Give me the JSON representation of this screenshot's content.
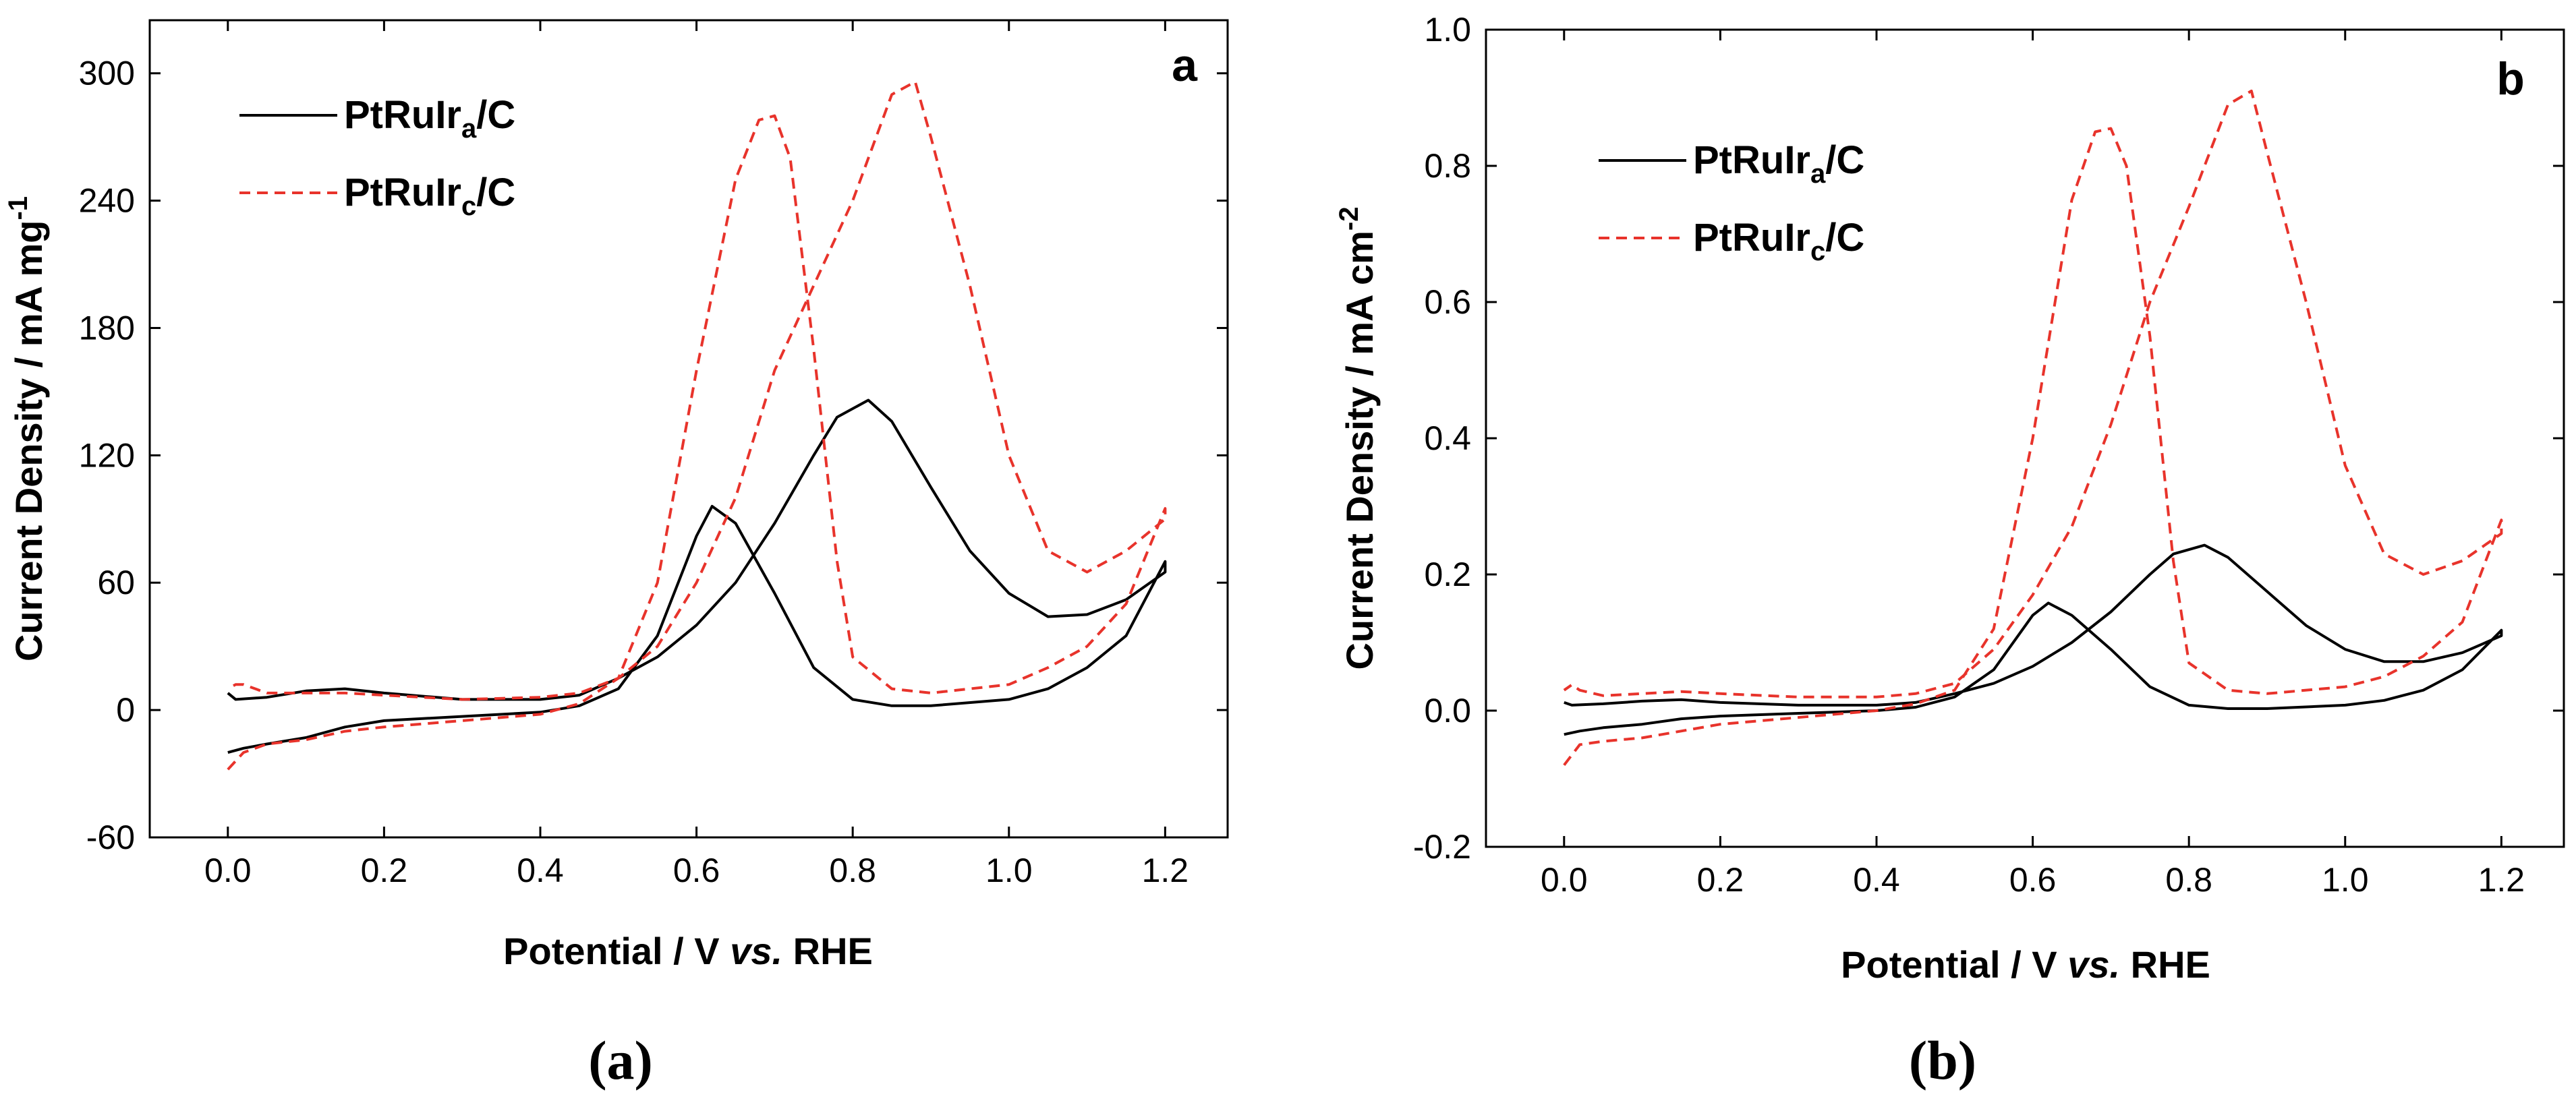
{
  "chart_data": [
    {
      "type": "line",
      "panel_label": "a",
      "caption": "a",
      "xlabel_main": "Potential / V ",
      "xlabel_italic": "vs.",
      "xlabel_tail": " RHE",
      "ylabel_main": "Current Density / mA mg",
      "ylabel_sup": "-1",
      "xlim": [
        -0.1,
        1.28
      ],
      "ylim": [
        -60,
        325
      ],
      "xticks": [
        0.0,
        0.2,
        0.4,
        0.6,
        0.8,
        1.0,
        1.2
      ],
      "xtick_labels": [
        "0.0",
        "0.2",
        "0.4",
        "0.6",
        "0.8",
        "1.0",
        "1.2"
      ],
      "yticks": [
        -60,
        0,
        60,
        120,
        180,
        240,
        300
      ],
      "ytick_labels": [
        "-60",
        "0",
        "60",
        "120",
        "180",
        "240",
        "300"
      ],
      "legend": [
        {
          "base": "PtRuIr",
          "sub": "a",
          "tail": "/C"
        },
        {
          "base": "PtRuIr",
          "sub": "c",
          "tail": "/C"
        }
      ],
      "series": [
        {
          "name": "PtRuIr_a/C",
          "color": "#000000",
          "dash": "solid",
          "points": [
            [
              0.0,
              -20
            ],
            [
              0.02,
              -18
            ],
            [
              0.05,
              -16
            ],
            [
              0.1,
              -13
            ],
            [
              0.15,
              -8
            ],
            [
              0.2,
              -5
            ],
            [
              0.3,
              -3
            ],
            [
              0.4,
              -1
            ],
            [
              0.45,
              2
            ],
            [
              0.5,
              10
            ],
            [
              0.55,
              35
            ],
            [
              0.6,
              82
            ],
            [
              0.62,
              96
            ],
            [
              0.65,
              88
            ],
            [
              0.7,
              55
            ],
            [
              0.75,
              20
            ],
            [
              0.8,
              5
            ],
            [
              0.85,
              2
            ],
            [
              0.9,
              2
            ],
            [
              1.0,
              5
            ],
            [
              1.05,
              10
            ],
            [
              1.1,
              20
            ],
            [
              1.15,
              35
            ],
            [
              1.2,
              70
            ],
            [
              1.2,
              65
            ],
            [
              1.15,
              52
            ],
            [
              1.1,
              45
            ],
            [
              1.05,
              44
            ],
            [
              1.0,
              55
            ],
            [
              0.95,
              75
            ],
            [
              0.9,
              105
            ],
            [
              0.85,
              136
            ],
            [
              0.82,
              146
            ],
            [
              0.78,
              138
            ],
            [
              0.75,
              120
            ],
            [
              0.7,
              88
            ],
            [
              0.65,
              60
            ],
            [
              0.6,
              40
            ],
            [
              0.55,
              25
            ],
            [
              0.5,
              15
            ],
            [
              0.45,
              7
            ],
            [
              0.4,
              5
            ],
            [
              0.3,
              5
            ],
            [
              0.2,
              8
            ],
            [
              0.15,
              10
            ],
            [
              0.1,
              9
            ],
            [
              0.05,
              6
            ],
            [
              0.01,
              5
            ],
            [
              0.0,
              8
            ]
          ]
        },
        {
          "name": "PtRuIr_c/C",
          "color": "#e8332b",
          "dash": "dashed",
          "points": [
            [
              0.0,
              -28
            ],
            [
              0.02,
              -20
            ],
            [
              0.05,
              -16
            ],
            [
              0.1,
              -14
            ],
            [
              0.15,
              -10
            ],
            [
              0.2,
              -8
            ],
            [
              0.3,
              -5
            ],
            [
              0.4,
              -2
            ],
            [
              0.45,
              3
            ],
            [
              0.5,
              15
            ],
            [
              0.55,
              60
            ],
            [
              0.6,
              160
            ],
            [
              0.65,
              250
            ],
            [
              0.68,
              278
            ],
            [
              0.7,
              280
            ],
            [
              0.72,
              260
            ],
            [
              0.75,
              170
            ],
            [
              0.78,
              70
            ],
            [
              0.8,
              25
            ],
            [
              0.85,
              10
            ],
            [
              0.9,
              8
            ],
            [
              1.0,
              12
            ],
            [
              1.05,
              20
            ],
            [
              1.1,
              30
            ],
            [
              1.15,
              50
            ],
            [
              1.2,
              95
            ],
            [
              1.2,
              90
            ],
            [
              1.15,
              75
            ],
            [
              1.1,
              65
            ],
            [
              1.05,
              75
            ],
            [
              1.0,
              120
            ],
            [
              0.95,
              200
            ],
            [
              0.9,
              270
            ],
            [
              0.88,
              296
            ],
            [
              0.85,
              290
            ],
            [
              0.8,
              240
            ],
            [
              0.75,
              200
            ],
            [
              0.7,
              160
            ],
            [
              0.65,
              100
            ],
            [
              0.6,
              60
            ],
            [
              0.55,
              30
            ],
            [
              0.5,
              15
            ],
            [
              0.45,
              8
            ],
            [
              0.4,
              6
            ],
            [
              0.3,
              5
            ],
            [
              0.2,
              7
            ],
            [
              0.15,
              8
            ],
            [
              0.1,
              8
            ],
            [
              0.05,
              8
            ],
            [
              0.02,
              12
            ],
            [
              0.01,
              12
            ],
            [
              0.0,
              10
            ]
          ]
        }
      ]
    },
    {
      "type": "line",
      "panel_label": "b",
      "caption": "b",
      "xlabel_main": "Potential / V ",
      "xlabel_italic": "vs.",
      "xlabel_tail": " RHE",
      "ylabel_main": "Current Density / mA cm",
      "ylabel_sup": "-2",
      "xlim": [
        -0.1,
        1.28
      ],
      "ylim": [
        -0.2,
        1.0
      ],
      "xticks": [
        0.0,
        0.2,
        0.4,
        0.6,
        0.8,
        1.0,
        1.2
      ],
      "xtick_labels": [
        "0.0",
        "0.2",
        "0.4",
        "0.6",
        "0.8",
        "1.0",
        "1.2"
      ],
      "yticks": [
        -0.2,
        0.0,
        0.2,
        0.4,
        0.6,
        0.8,
        1.0
      ],
      "ytick_labels": [
        "-0.2",
        "0.0",
        "0.2",
        "0.4",
        "0.6",
        "0.8",
        "1.0"
      ],
      "legend": [
        {
          "base": "PtRuIr",
          "sub": "a",
          "tail": "/C"
        },
        {
          "base": "PtRuIr",
          "sub": "c",
          "tail": "/C"
        }
      ],
      "series": [
        {
          "name": "PtRuIr_a/C",
          "color": "#000000",
          "dash": "solid",
          "points": [
            [
              0.0,
              -0.035
            ],
            [
              0.02,
              -0.03
            ],
            [
              0.05,
              -0.025
            ],
            [
              0.1,
              -0.02
            ],
            [
              0.15,
              -0.012
            ],
            [
              0.2,
              -0.008
            ],
            [
              0.3,
              -0.004
            ],
            [
              0.4,
              0.0
            ],
            [
              0.45,
              0.005
            ],
            [
              0.5,
              0.02
            ],
            [
              0.55,
              0.06
            ],
            [
              0.6,
              0.14
            ],
            [
              0.62,
              0.158
            ],
            [
              0.65,
              0.14
            ],
            [
              0.7,
              0.09
            ],
            [
              0.75,
              0.035
            ],
            [
              0.8,
              0.008
            ],
            [
              0.85,
              0.003
            ],
            [
              0.9,
              0.003
            ],
            [
              1.0,
              0.008
            ],
            [
              1.05,
              0.015
            ],
            [
              1.1,
              0.03
            ],
            [
              1.15,
              0.06
            ],
            [
              1.2,
              0.118
            ],
            [
              1.2,
              0.11
            ],
            [
              1.15,
              0.085
            ],
            [
              1.1,
              0.072
            ],
            [
              1.05,
              0.072
            ],
            [
              1.0,
              0.09
            ],
            [
              0.95,
              0.125
            ],
            [
              0.9,
              0.175
            ],
            [
              0.85,
              0.225
            ],
            [
              0.82,
              0.243
            ],
            [
              0.78,
              0.23
            ],
            [
              0.75,
              0.2
            ],
            [
              0.7,
              0.145
            ],
            [
              0.65,
              0.1
            ],
            [
              0.6,
              0.065
            ],
            [
              0.55,
              0.04
            ],
            [
              0.5,
              0.025
            ],
            [
              0.45,
              0.012
            ],
            [
              0.4,
              0.008
            ],
            [
              0.3,
              0.008
            ],
            [
              0.2,
              0.012
            ],
            [
              0.15,
              0.016
            ],
            [
              0.1,
              0.014
            ],
            [
              0.05,
              0.01
            ],
            [
              0.01,
              0.008
            ],
            [
              0.0,
              0.012
            ]
          ]
        },
        {
          "name": "PtRuIr_c/C",
          "color": "#e8332b",
          "dash": "dashed",
          "points": [
            [
              0.0,
              -0.08
            ],
            [
              0.02,
              -0.05
            ],
            [
              0.05,
              -0.045
            ],
            [
              0.1,
              -0.04
            ],
            [
              0.15,
              -0.03
            ],
            [
              0.2,
              -0.02
            ],
            [
              0.3,
              -0.01
            ],
            [
              0.4,
              0.0
            ],
            [
              0.45,
              0.01
            ],
            [
              0.5,
              0.03
            ],
            [
              0.55,
              0.12
            ],
            [
              0.6,
              0.4
            ],
            [
              0.65,
              0.75
            ],
            [
              0.68,
              0.85
            ],
            [
              0.7,
              0.855
            ],
            [
              0.72,
              0.8
            ],
            [
              0.75,
              0.55
            ],
            [
              0.78,
              0.22
            ],
            [
              0.8,
              0.07
            ],
            [
              0.85,
              0.03
            ],
            [
              0.9,
              0.025
            ],
            [
              1.0,
              0.035
            ],
            [
              1.05,
              0.05
            ],
            [
              1.1,
              0.08
            ],
            [
              1.15,
              0.13
            ],
            [
              1.2,
              0.28
            ],
            [
              1.2,
              0.26
            ],
            [
              1.15,
              0.22
            ],
            [
              1.1,
              0.2
            ],
            [
              1.05,
              0.23
            ],
            [
              1.0,
              0.36
            ],
            [
              0.95,
              0.6
            ],
            [
              0.9,
              0.82
            ],
            [
              0.88,
              0.91
            ],
            [
              0.85,
              0.89
            ],
            [
              0.8,
              0.74
            ],
            [
              0.75,
              0.6
            ],
            [
              0.7,
              0.42
            ],
            [
              0.65,
              0.27
            ],
            [
              0.6,
              0.17
            ],
            [
              0.55,
              0.09
            ],
            [
              0.5,
              0.04
            ],
            [
              0.45,
              0.025
            ],
            [
              0.4,
              0.02
            ],
            [
              0.3,
              0.02
            ],
            [
              0.2,
              0.025
            ],
            [
              0.15,
              0.028
            ],
            [
              0.1,
              0.025
            ],
            [
              0.05,
              0.022
            ],
            [
              0.02,
              0.03
            ],
            [
              0.01,
              0.038
            ],
            [
              0.0,
              0.03
            ]
          ]
        }
      ]
    }
  ]
}
